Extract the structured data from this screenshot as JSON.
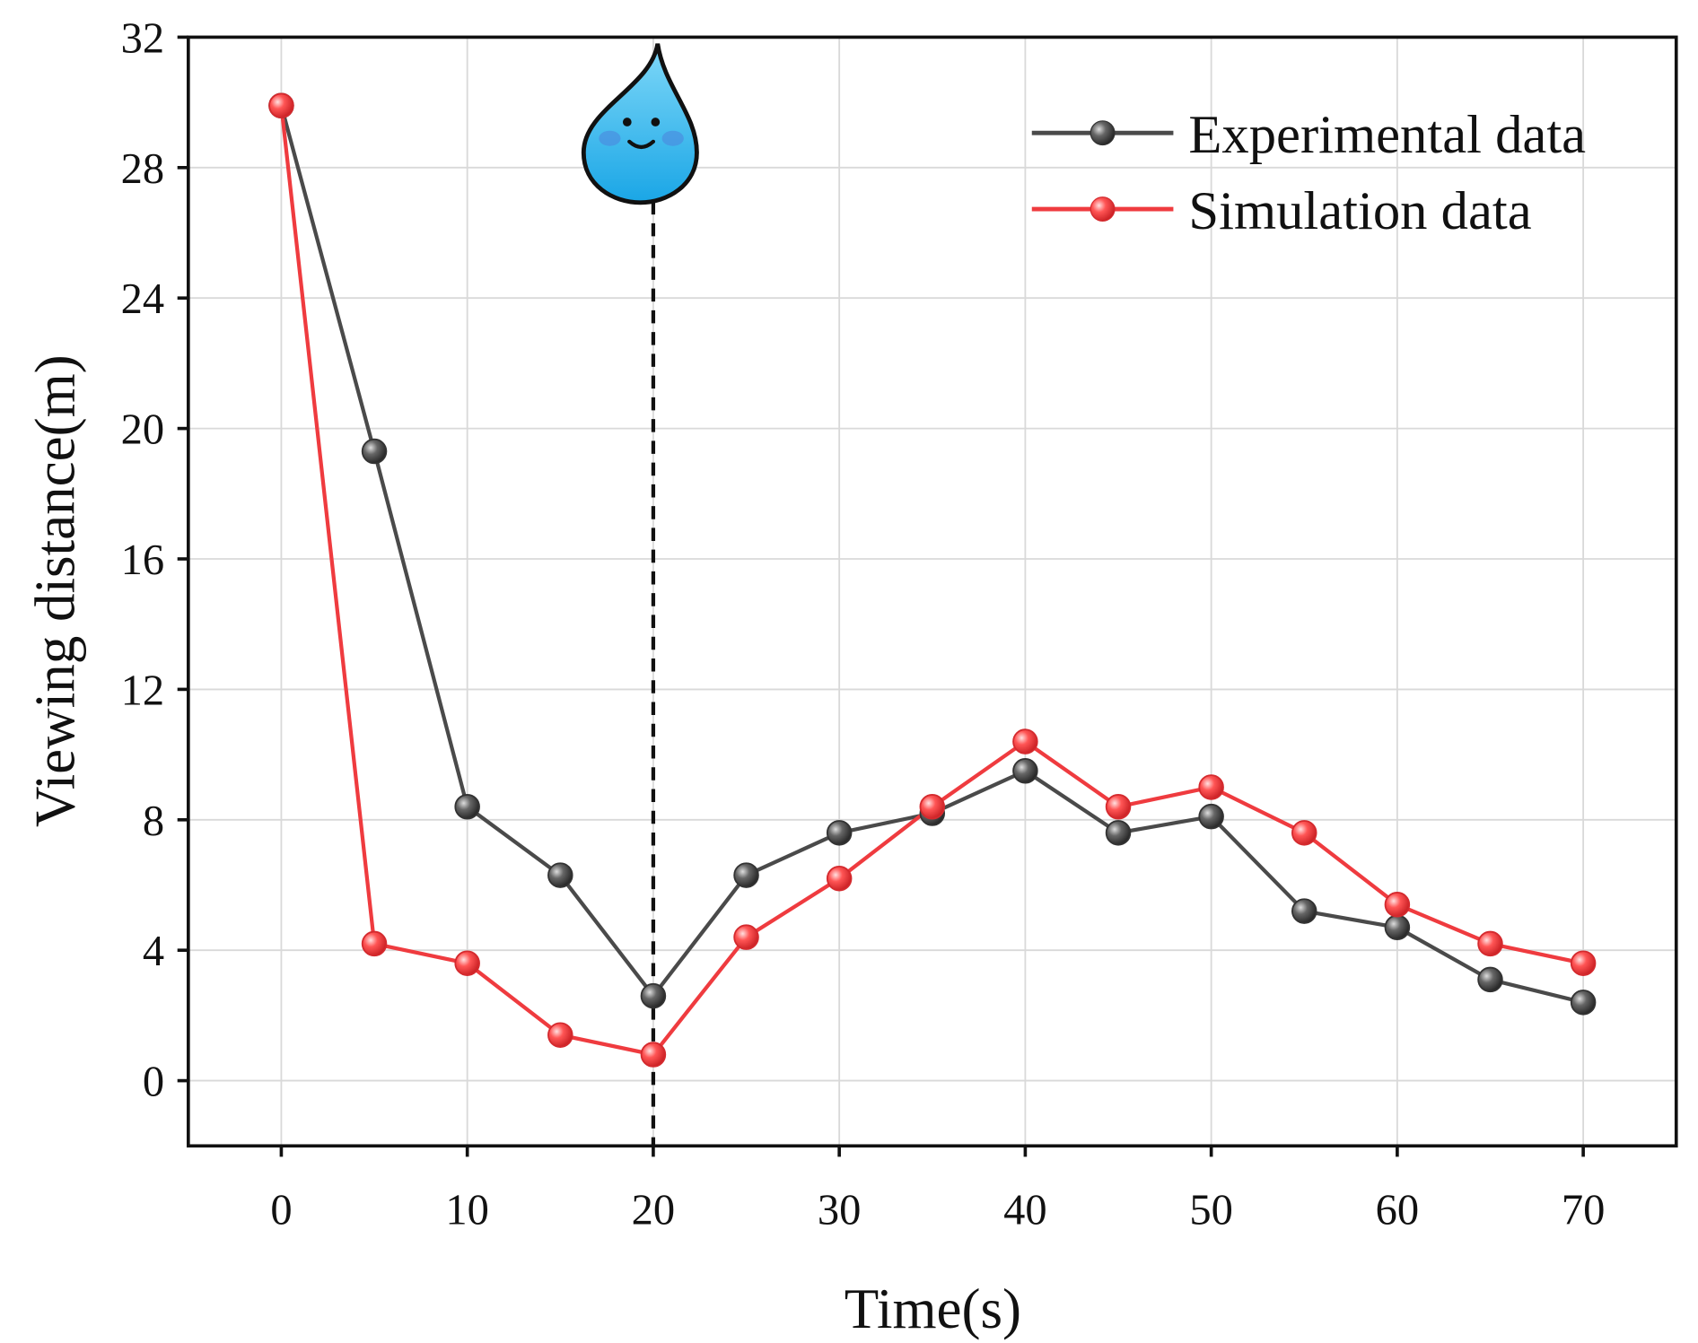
{
  "chart_data": {
    "type": "line",
    "title": "",
    "xlabel": "Time(s)",
    "ylabel": "Viewing distance(m)",
    "xlim": [
      -5,
      75
    ],
    "ylim": [
      -2,
      32
    ],
    "xticks": [
      0,
      10,
      20,
      30,
      40,
      50,
      60,
      70
    ],
    "yticks": [
      0,
      4,
      8,
      12,
      16,
      20,
      24,
      28,
      32
    ],
    "grid": true,
    "legend_position": "top-right",
    "x": [
      0,
      5,
      10,
      15,
      20,
      25,
      30,
      35,
      40,
      45,
      50,
      55,
      60,
      65,
      70
    ],
    "series": [
      {
        "name": "Experimental data",
        "color": "#4a4a4a",
        "values": [
          29.9,
          19.3,
          8.4,
          6.3,
          2.6,
          6.3,
          7.6,
          8.2,
          9.5,
          7.6,
          8.1,
          5.2,
          4.7,
          3.1,
          2.4
        ]
      },
      {
        "name": "Simulation data",
        "color": "#ef3b3f",
        "values": [
          29.9,
          4.2,
          3.6,
          1.4,
          0.8,
          4.4,
          6.2,
          8.4,
          10.4,
          8.4,
          9.0,
          7.6,
          5.4,
          4.2,
          3.6
        ]
      }
    ],
    "annotations": [
      {
        "type": "vertical-dashed-line",
        "x": 20,
        "marker": "water-droplet"
      }
    ]
  }
}
